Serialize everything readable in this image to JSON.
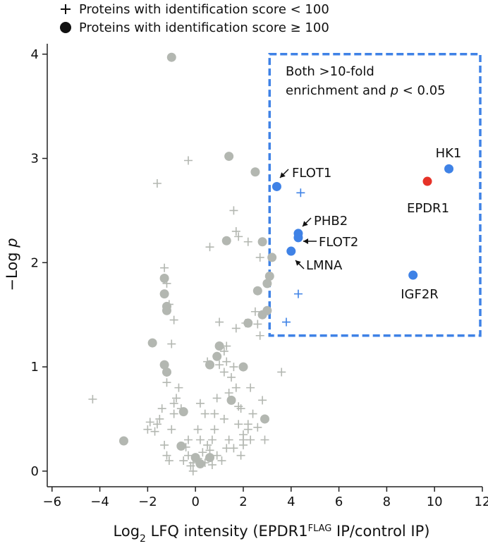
{
  "legend": {
    "cross_label": "Proteins with identification score < 100",
    "dot_label": "Proteins with identification score ≥ 100"
  },
  "colors": {
    "background_points": "#b3b7b1",
    "highlight": "#3f82e6",
    "epdr1": "#e63228",
    "box": "#3f82e6",
    "axis": "#222222"
  },
  "chart_data": {
    "type": "scatter",
    "xlabel_parts": {
      "pre": "Log",
      "sub": "2",
      "mid": " LFQ intensity (EPDR1",
      "sup": "FLAG",
      "post": " IP/control IP)"
    },
    "ylabel_parts": {
      "pre": "−Log ",
      "italic": "p"
    },
    "xlim": [
      -6.2,
      12
    ],
    "ylim": [
      -0.15,
      4.1
    ],
    "x_ticks": [
      -6,
      -4,
      -2,
      0,
      2,
      4,
      6,
      8,
      10,
      12
    ],
    "y_ticks": [
      0,
      1,
      2,
      3,
      4
    ],
    "region_box": {
      "x": [
        3.1,
        12.2
      ],
      "y": [
        1.3,
        4.0
      ]
    },
    "region_label": [
      "Both >10-fold",
      "enrichment and ",
      "p",
      " < 0.05"
    ],
    "grey_dots": [
      [
        -1.0,
        3.97
      ],
      [
        1.4,
        3.02
      ],
      [
        2.5,
        2.87
      ],
      [
        1.3,
        2.21
      ],
      [
        2.8,
        2.2
      ],
      [
        3.2,
        2.05
      ],
      [
        3.1,
        1.87
      ],
      [
        3.0,
        1.8
      ],
      [
        2.6,
        1.73
      ],
      [
        -1.3,
        1.85
      ],
      [
        -1.3,
        1.7
      ],
      [
        -1.2,
        1.58
      ],
      [
        -1.2,
        1.54
      ],
      [
        -1.8,
        1.23
      ],
      [
        2.8,
        1.5
      ],
      [
        3.0,
        1.54
      ],
      [
        2.2,
        1.42
      ],
      [
        1.0,
        1.2
      ],
      [
        0.9,
        1.1
      ],
      [
        -1.3,
        1.02
      ],
      [
        -1.2,
        0.95
      ],
      [
        0.6,
        1.02
      ],
      [
        2.0,
        1.0
      ],
      [
        1.5,
        0.68
      ],
      [
        -0.5,
        0.57
      ],
      [
        2.9,
        0.5
      ],
      [
        -0.6,
        0.24
      ],
      [
        -3.0,
        0.29
      ],
      [
        0.0,
        0.13
      ],
      [
        0.2,
        0.07
      ],
      [
        0.6,
        0.13
      ]
    ],
    "grey_crosses": [
      [
        -0.3,
        2.98
      ],
      [
        -1.6,
        2.76
      ],
      [
        1.6,
        2.5
      ],
      [
        1.7,
        2.3
      ],
      [
        1.8,
        2.25
      ],
      [
        0.6,
        2.15
      ],
      [
        2.2,
        2.2
      ],
      [
        2.7,
        2.05
      ],
      [
        -1.3,
        1.95
      ],
      [
        -1.2,
        1.8
      ],
      [
        -1.1,
        1.6
      ],
      [
        -0.9,
        1.45
      ],
      [
        -1.0,
        1.22
      ],
      [
        -1.2,
        0.85
      ],
      [
        -1.6,
        0.45
      ],
      [
        -0.8,
        0.7
      ],
      [
        -0.9,
        0.65
      ],
      [
        -0.6,
        0.6
      ],
      [
        -0.9,
        0.55
      ],
      [
        -1.7,
        0.38
      ],
      [
        0.8,
        0.4
      ],
      [
        1.0,
        1.02
      ],
      [
        1.2,
        0.95
      ],
      [
        1.3,
        1.05
      ],
      [
        1.4,
        0.75
      ],
      [
        1.5,
        0.9
      ],
      [
        1.7,
        0.8
      ],
      [
        1.8,
        0.62
      ],
      [
        1.8,
        0.45
      ],
      [
        2.2,
        0.4
      ],
      [
        2.0,
        0.25
      ],
      [
        2.1,
        1.42
      ],
      [
        1.7,
        1.37
      ],
      [
        1.3,
        1.2
      ],
      [
        1.2,
        1.15
      ],
      [
        1.0,
        1.43
      ],
      [
        0.2,
        0.65
      ],
      [
        0.4,
        0.55
      ],
      [
        0.7,
        0.3
      ],
      [
        0.6,
        0.2
      ],
      [
        0.3,
        0.18
      ],
      [
        0.1,
        0.12
      ],
      [
        -0.1,
        0.08
      ],
      [
        -0.2,
        0.05
      ],
      [
        -0.3,
        0.15
      ],
      [
        -0.4,
        0.23
      ],
      [
        -1.0,
        0.4
      ],
      [
        -1.3,
        0.25
      ],
      [
        -1.2,
        0.15
      ],
      [
        -1.1,
        0.1
      ],
      [
        -4.3,
        0.69
      ],
      [
        -2.0,
        0.4
      ],
      [
        -0.3,
        0.3
      ],
      [
        1.3,
        0.22
      ],
      [
        1.6,
        0.22
      ],
      [
        1.9,
        0.15
      ],
      [
        2.0,
        0.35
      ],
      [
        2.4,
        0.55
      ],
      [
        2.6,
        0.42
      ],
      [
        2.8,
        0.68
      ],
      [
        2.9,
        0.3
      ],
      [
        3.6,
        0.95
      ],
      [
        2.7,
        1.3
      ],
      [
        2.5,
        1.53
      ],
      [
        2.6,
        1.41
      ],
      [
        1.6,
        1.0
      ],
      [
        2.3,
        0.8
      ],
      [
        2.2,
        0.45
      ],
      [
        2.0,
        0.3
      ],
      [
        1.2,
        0.5
      ],
      [
        0.9,
        0.7
      ],
      [
        0.8,
        0.55
      ],
      [
        0.5,
        0.25
      ],
      [
        0.1,
        0.4
      ],
      [
        0.2,
        0.3
      ],
      [
        -0.7,
        0.8
      ],
      [
        -1.5,
        0.5
      ],
      [
        -1.9,
        0.47
      ],
      [
        -1.4,
        0.6
      ],
      [
        -0.5,
        0.1
      ],
      [
        0.4,
        0.08
      ],
      [
        0.7,
        0.06
      ],
      [
        1.1,
        0.1
      ],
      [
        -0.1,
        0.0
      ],
      [
        0.5,
        1.05
      ],
      [
        1.9,
        0.6
      ],
      [
        1.4,
        0.3
      ],
      [
        0.9,
        0.15
      ],
      [
        2.3,
        0.3
      ]
    ],
    "blue_crosses": [
      [
        4.4,
        2.67
      ],
      [
        4.3,
        1.7
      ],
      [
        3.8,
        1.43
      ]
    ],
    "highlight_points": [
      {
        "name": "FLOT1",
        "x": 3.4,
        "y": 2.73,
        "color": "#3f82e6"
      },
      {
        "name": "PHB2",
        "x": 4.3,
        "y": 2.28,
        "color": "#3f82e6"
      },
      {
        "name": "FLOT2",
        "x": 4.3,
        "y": 2.24,
        "color": "#3f82e6"
      },
      {
        "name": "LMNA",
        "x": 4.0,
        "y": 2.11,
        "color": "#3f82e6"
      },
      {
        "name": "HK1",
        "x": 10.6,
        "y": 2.9,
        "color": "#3f82e6"
      },
      {
        "name": "EPDR1",
        "x": 9.7,
        "y": 2.78,
        "color": "#e63228"
      },
      {
        "name": "IGF2R",
        "x": 9.1,
        "y": 1.88,
        "color": "#3f82e6"
      }
    ],
    "annotations": [
      {
        "text": "FLOT1",
        "arrow": "sw"
      },
      {
        "text": "PHB2",
        "arrow": "sw"
      },
      {
        "text": "FLOT2",
        "arrow": "left"
      },
      {
        "text": "LMNA",
        "arrow": "nw"
      },
      {
        "text": "HK1",
        "arrow": "none"
      },
      {
        "text": "EPDR1",
        "arrow": "none"
      },
      {
        "text": "IGF2R",
        "arrow": "none"
      }
    ]
  }
}
